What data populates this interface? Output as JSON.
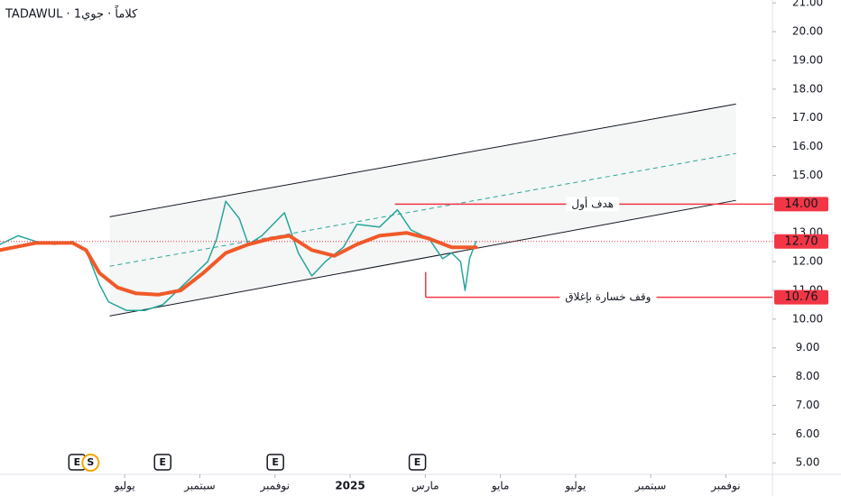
{
  "chart_data": {
    "type": "line",
    "title": "TADAWUL · كلاماً · جوي1",
    "xlim": [
      3.68,
      24.24
    ],
    "xticks": [
      {
        "value": 7,
        "label": "يوليو"
      },
      {
        "value": 9,
        "label": "سبتمبر"
      },
      {
        "value": 11,
        "label": "نوفمبر"
      },
      {
        "value": 13,
        "label": "2025"
      },
      {
        "value": 15,
        "label": "مارس"
      },
      {
        "value": 17,
        "label": "مايو"
      },
      {
        "value": 19,
        "label": "يوليو"
      },
      {
        "value": 21,
        "label": "سبتمبر"
      },
      {
        "value": 23,
        "label": "نوفمبر"
      }
    ],
    "ylim": [
      4.6,
      21.1
    ],
    "yticks": [
      {
        "value": 5,
        "label": "5.00"
      },
      {
        "value": 6,
        "label": "6.00"
      },
      {
        "value": 7,
        "label": "7.00"
      },
      {
        "value": 8,
        "label": "8.00"
      },
      {
        "value": 9,
        "label": "9.00"
      },
      {
        "value": 10,
        "label": "10.00"
      },
      {
        "value": 11,
        "label": "11.00"
      },
      {
        "value": 12,
        "label": "12.00"
      },
      {
        "value": 13,
        "label": "13.00"
      },
      {
        "value": 14,
        "label": "14.00"
      },
      {
        "value": 15,
        "label": "15.00"
      },
      {
        "value": 16,
        "label": "16.00"
      },
      {
        "value": 17,
        "label": "17.00"
      },
      {
        "value": 18,
        "label": "18.00"
      },
      {
        "value": 19,
        "label": "19.00"
      },
      {
        "value": 20,
        "label": "20.00"
      },
      {
        "value": 21,
        "label": "21.00"
      }
    ],
    "series": [
      {
        "name": "price",
        "color": "#26a69a",
        "width": 1.5,
        "x": [
          3.68,
          4.16,
          4.64,
          5.13,
          5.61,
          5.97,
          6.33,
          6.57,
          7.05,
          7.53,
          8.01,
          8.25,
          8.73,
          9.21,
          9.45,
          9.69,
          10.05,
          10.29,
          10.65,
          11.25,
          11.62,
          11.98,
          12.34,
          12.82,
          13.18,
          13.78,
          14.26,
          14.62,
          15.1,
          15.46,
          15.7,
          15.94,
          16.06,
          16.18,
          16.35
        ],
        "values": [
          12.6,
          12.9,
          12.7,
          12.6,
          12.7,
          12.4,
          11.2,
          10.6,
          10.3,
          10.3,
          10.5,
          10.8,
          11.4,
          12.0,
          12.8,
          14.1,
          13.5,
          12.6,
          12.9,
          13.7,
          12.3,
          11.5,
          12.0,
          12.5,
          13.3,
          13.2,
          13.8,
          13.1,
          12.8,
          12.1,
          12.3,
          12.0,
          11.0,
          12.1,
          12.7
        ]
      },
      {
        "name": "moving-average",
        "color": "#f05a28",
        "width": 4,
        "x": [
          3.68,
          4.64,
          5.61,
          5.97,
          6.33,
          6.81,
          7.29,
          7.89,
          8.49,
          9.09,
          9.69,
          10.29,
          10.89,
          11.38,
          11.98,
          12.58,
          13.18,
          13.78,
          14.5,
          15.1,
          15.7,
          16.35
        ],
        "values": [
          12.4,
          12.65,
          12.65,
          12.4,
          11.6,
          11.1,
          10.9,
          10.85,
          11.0,
          11.6,
          12.3,
          12.6,
          12.8,
          12.9,
          12.4,
          12.2,
          12.6,
          12.9,
          13.0,
          12.8,
          12.5,
          12.5
        ]
      }
    ],
    "channel": {
      "x": [
        6.6,
        23.27
      ],
      "upper": [
        13.56,
        17.48
      ],
      "middle": [
        11.84,
        15.76
      ],
      "lower": [
        10.11,
        14.13
      ]
    },
    "last_price": {
      "value": 12.7,
      "value_label": "12.70"
    },
    "targets": [
      {
        "value": 14,
        "value_label": "14.00",
        "label": "هدف أول",
        "x_start": 14.19
      },
      {
        "value": 10.76,
        "value_label": "10.76",
        "label": "وقف خسارة بإغلاق",
        "x_start": 15.01
      }
    ],
    "events": [
      {
        "x": 5.73,
        "label": "E"
      },
      {
        "x": 6.09,
        "label": "S"
      },
      {
        "x": 8.01,
        "label": "E"
      },
      {
        "x": 11.01,
        "label": "E"
      },
      {
        "x": 14.79,
        "label": "E"
      }
    ]
  }
}
